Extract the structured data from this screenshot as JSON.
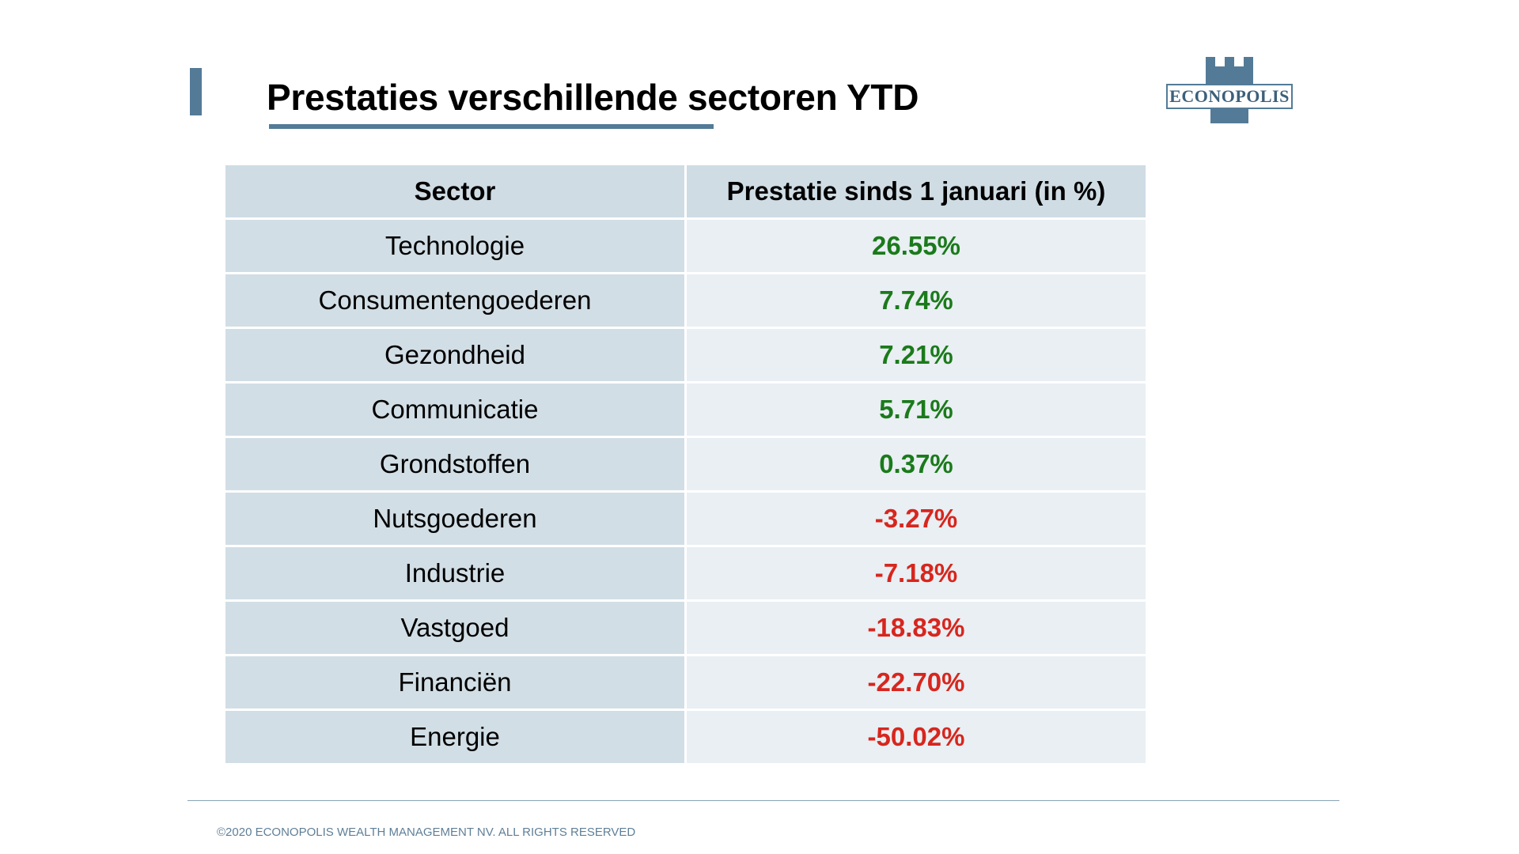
{
  "slide": {
    "title": "Prestaties verschillende sectoren YTD",
    "logo_text": "ECONOPOLIS"
  },
  "table": {
    "headers": {
      "sector": "Sector",
      "performance": "Prestatie sinds 1 januari (in %)"
    },
    "rows": [
      {
        "sector": "Technologie",
        "value": "26.55%",
        "trend": "positive"
      },
      {
        "sector": "Consumentengoederen",
        "value": "7.74%",
        "trend": "positive"
      },
      {
        "sector": "Gezondheid",
        "value": "7.21%",
        "trend": "positive"
      },
      {
        "sector": "Communicatie",
        "value": "5.71%",
        "trend": "positive"
      },
      {
        "sector": "Grondstoffen",
        "value": "0.37%",
        "trend": "positive"
      },
      {
        "sector": "Nutsgoederen",
        "value": "-3.27%",
        "trend": "negative"
      },
      {
        "sector": "Industrie",
        "value": "-7.18%",
        "trend": "negative"
      },
      {
        "sector": "Vastgoed",
        "value": "-18.83%",
        "trend": "negative"
      },
      {
        "sector": "Financiën",
        "value": "-22.70%",
        "trend": "negative"
      },
      {
        "sector": "Energie",
        "value": "-50.02%",
        "trend": "negative"
      }
    ]
  },
  "footer": {
    "copyright": "©2020 ECONOPOLIS WEALTH MANAGEMENT NV. ALL RIGHTS RESERVED"
  },
  "colors": {
    "accent": "#537b97",
    "positive": "#1b7a1b",
    "negative": "#d7261e",
    "header_bg": "#cfdce4",
    "sector_bg": "#d2dee5",
    "value_bg": "#e9eff3"
  },
  "icons": {
    "logo": "castle-tower-icon"
  }
}
